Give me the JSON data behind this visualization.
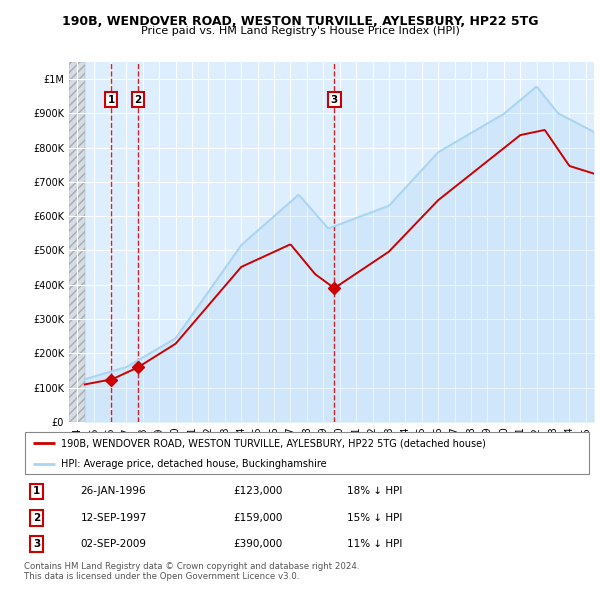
{
  "title": "190B, WENDOVER ROAD, WESTON TURVILLE, AYLESBURY, HP22 5TG",
  "subtitle": "Price paid vs. HM Land Registry's House Price Index (HPI)",
  "legend_line1": "190B, WENDOVER ROAD, WESTON TURVILLE, AYLESBURY, HP22 5TG (detached house)",
  "legend_line2": "HPI: Average price, detached house, Buckinghamshire",
  "footer": "Contains HM Land Registry data © Crown copyright and database right 2024.\nThis data is licensed under the Open Government Licence v3.0.",
  "transactions": [
    {
      "num": 1,
      "date": "26-JAN-1996",
      "price": 123000,
      "hpi_diff": "18% ↓ HPI",
      "x": 1996.07
    },
    {
      "num": 2,
      "date": "12-SEP-1997",
      "price": 159000,
      "hpi_diff": "15% ↓ HPI",
      "x": 1997.7
    },
    {
      "num": 3,
      "date": "02-SEP-2009",
      "price": 390000,
      "hpi_diff": "11% ↓ HPI",
      "x": 2009.67
    }
  ],
  "hpi_line_color": "#aad4f0",
  "price_line_color": "#cc0000",
  "marker_color": "#cc0000",
  "vline_color": "#cc0000",
  "bg_color": "#ddeeff",
  "ylim": [
    0,
    1050000
  ],
  "xlim_start": 1993.5,
  "xlim_end": 2025.5
}
